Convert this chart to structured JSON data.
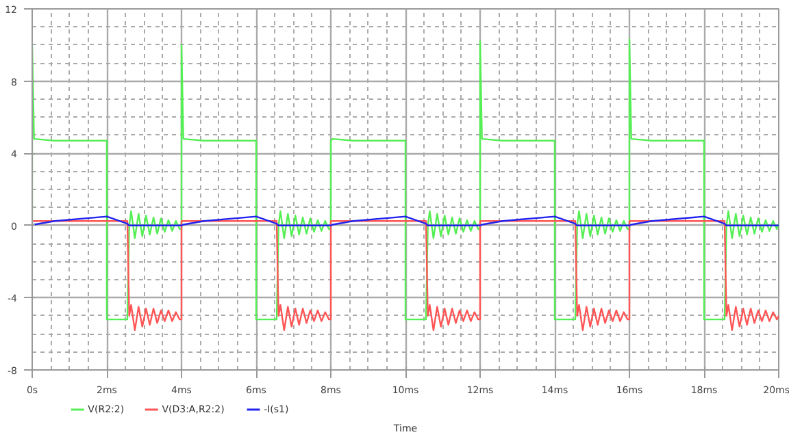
{
  "chart_data": {
    "type": "line",
    "xlabel": "Time",
    "xlim": [
      0,
      20
    ],
    "ylim": [
      -8,
      12
    ],
    "xticks": [
      {
        "value": 0,
        "label": "0s"
      },
      {
        "value": 2,
        "label": "2ms"
      },
      {
        "value": 4,
        "label": "4ms"
      },
      {
        "value": 6,
        "label": "6ms"
      },
      {
        "value": 8,
        "label": "8ms"
      },
      {
        "value": 10,
        "label": "10ms"
      },
      {
        "value": 12,
        "label": "12ms"
      },
      {
        "value": 14,
        "label": "14ms"
      },
      {
        "value": 16,
        "label": "16ms"
      },
      {
        "value": 18,
        "label": "18ms"
      },
      {
        "value": 20,
        "label": "20ms"
      }
    ],
    "yticks": [
      -8,
      -4,
      0,
      4,
      8,
      12
    ],
    "grid": true,
    "legend": "bottom",
    "line_style": "solid",
    "x": [
      0,
      0,
      0.05,
      0.6,
      2,
      2,
      2.55,
      2.6,
      2.65,
      2.75,
      2.85,
      2.95,
      3.05,
      3.15,
      3.25,
      3.35,
      3.45,
      3.55,
      3.65,
      3.75,
      3.85,
      3.95,
      4,
      4,
      4.05,
      4.6,
      6,
      6,
      6.55,
      6.6,
      6.65,
      6.75,
      6.85,
      6.95,
      7.05,
      7.15,
      7.25,
      7.35,
      7.45,
      7.55,
      7.65,
      7.75,
      7.85,
      7.95,
      8,
      8,
      8.05,
      8.6,
      10,
      10,
      10.55,
      10.6,
      10.65,
      10.75,
      10.85,
      10.95,
      11.05,
      11.15,
      11.25,
      11.35,
      11.45,
      11.55,
      11.65,
      11.75,
      11.85,
      11.95,
      12,
      12,
      12.05,
      12.6,
      14,
      14,
      14.55,
      14.6,
      14.65,
      14.75,
      14.85,
      14.95,
      15.05,
      15.15,
      15.25,
      15.35,
      15.45,
      15.55,
      15.65,
      15.75,
      15.85,
      15.95,
      16,
      16,
      16.05,
      16.6,
      18,
      18,
      18.55,
      18.6,
      18.65,
      18.75,
      18.85,
      18.95,
      19.05,
      19.15,
      19.25,
      19.35,
      19.45,
      19.55,
      19.65,
      19.75,
      19.85,
      19.95,
      20
    ],
    "series": [
      {
        "name": "V(R2:2)",
        "color": "#55ee55",
        "values": [
          0,
          10,
          4.8,
          4.7,
          4.7,
          -5.2,
          -5.2,
          0,
          0.8,
          -0.7,
          0.65,
          -0.6,
          0.55,
          -0.5,
          0.45,
          -0.45,
          0.4,
          -0.35,
          0.3,
          -0.3,
          0.25,
          -0.2,
          -0.2,
          10,
          4.8,
          4.7,
          4.7,
          -5.2,
          -5.2,
          0,
          0.8,
          -0.7,
          0.65,
          -0.6,
          0.55,
          -0.5,
          0.45,
          -0.45,
          0.4,
          -0.35,
          0.3,
          -0.3,
          0.25,
          -0.2,
          -0.2,
          4.7,
          4.8,
          4.7,
          4.7,
          -5.2,
          -5.2,
          0,
          0.8,
          -0.7,
          0.65,
          -0.6,
          0.55,
          -0.5,
          0.45,
          -0.45,
          0.4,
          -0.35,
          0.3,
          -0.3,
          0.25,
          -0.2,
          -0.2,
          10.2,
          4.8,
          4.7,
          4.7,
          -5.2,
          -5.2,
          0,
          0.8,
          -0.7,
          0.65,
          -0.6,
          0.55,
          -0.5,
          0.45,
          -0.45,
          0.4,
          -0.35,
          0.3,
          -0.3,
          0.25,
          -0.2,
          -0.2,
          10.3,
          4.8,
          4.7,
          4.7,
          -5.2,
          -5.2,
          0,
          0.8,
          -0.7,
          0.65,
          -0.6,
          0.55,
          -0.5,
          0.45,
          -0.45,
          0.4,
          -0.35,
          0.3,
          -0.3,
          0.25,
          -0.2,
          0.1
        ]
      },
      {
        "name": "V(D3:A,R2:2)",
        "color": "#ff5555",
        "values": [
          null,
          0.25,
          0.25,
          0.25,
          0.25,
          0.25,
          0.25,
          -5,
          -4.4,
          -5.8,
          -4.5,
          -5.6,
          -4.6,
          -5.5,
          -4.6,
          -5.4,
          -4.7,
          -5.3,
          -4.7,
          -5.3,
          -4.8,
          -5.2,
          -5.2,
          0.25,
          0.25,
          0.25,
          0.25,
          0.25,
          0.25,
          -5,
          -4.4,
          -5.8,
          -4.5,
          -5.6,
          -4.6,
          -5.5,
          -4.6,
          -5.4,
          -4.7,
          -5.3,
          -4.7,
          -5.3,
          -4.8,
          -5.2,
          -5.2,
          0.25,
          0.25,
          0.25,
          0.25,
          0.25,
          0.25,
          -5,
          -4.4,
          -5.8,
          -4.5,
          -5.6,
          -4.6,
          -5.5,
          -4.6,
          -5.4,
          -4.7,
          -5.3,
          -4.7,
          -5.3,
          -4.8,
          -5.2,
          -5.2,
          0.25,
          0.25,
          0.25,
          0.25,
          0.25,
          0.25,
          -5,
          -4.4,
          -5.8,
          -4.5,
          -5.6,
          -4.6,
          -5.5,
          -4.6,
          -5.4,
          -4.7,
          -5.3,
          -4.7,
          -5.3,
          -4.8,
          -5.2,
          -5.2,
          0.25,
          0.25,
          0.25,
          0.25,
          0.25,
          0.25,
          -5,
          -4.4,
          -5.8,
          -4.5,
          -5.6,
          -4.6,
          -5.5,
          -4.6,
          -5.4,
          -4.7,
          -5.3,
          -4.7,
          -5.3,
          -4.8,
          -5.2,
          -5
        ]
      },
      {
        "name": "-I(s1)",
        "color": "#2222ee",
        "values": [
          0,
          0,
          0.05,
          0.25,
          0.5,
          0.5,
          0.1,
          0,
          0,
          0,
          0,
          0,
          0,
          0,
          0,
          0,
          0,
          0,
          0,
          0,
          0,
          0,
          0,
          0,
          0.05,
          0.25,
          0.5,
          0.5,
          0.1,
          0,
          0,
          0,
          0,
          0,
          0,
          0,
          0,
          0,
          0,
          0,
          0,
          0,
          0,
          0,
          0,
          0,
          0.05,
          0.25,
          0.5,
          0.5,
          0.1,
          0,
          0,
          0,
          0,
          0,
          0,
          0,
          0,
          0,
          0,
          0,
          0,
          0,
          0,
          0,
          0,
          0,
          0.05,
          0.25,
          0.5,
          0.5,
          0.1,
          0,
          0,
          0,
          0,
          0,
          0,
          0,
          0,
          0,
          0,
          0,
          0,
          0,
          0,
          0,
          0,
          0,
          0.05,
          0.25,
          0.5,
          0.5,
          0.1,
          0,
          0,
          0,
          0,
          0,
          0,
          0,
          0,
          0,
          0,
          0,
          0,
          0,
          0,
          0,
          0
        ]
      }
    ]
  }
}
